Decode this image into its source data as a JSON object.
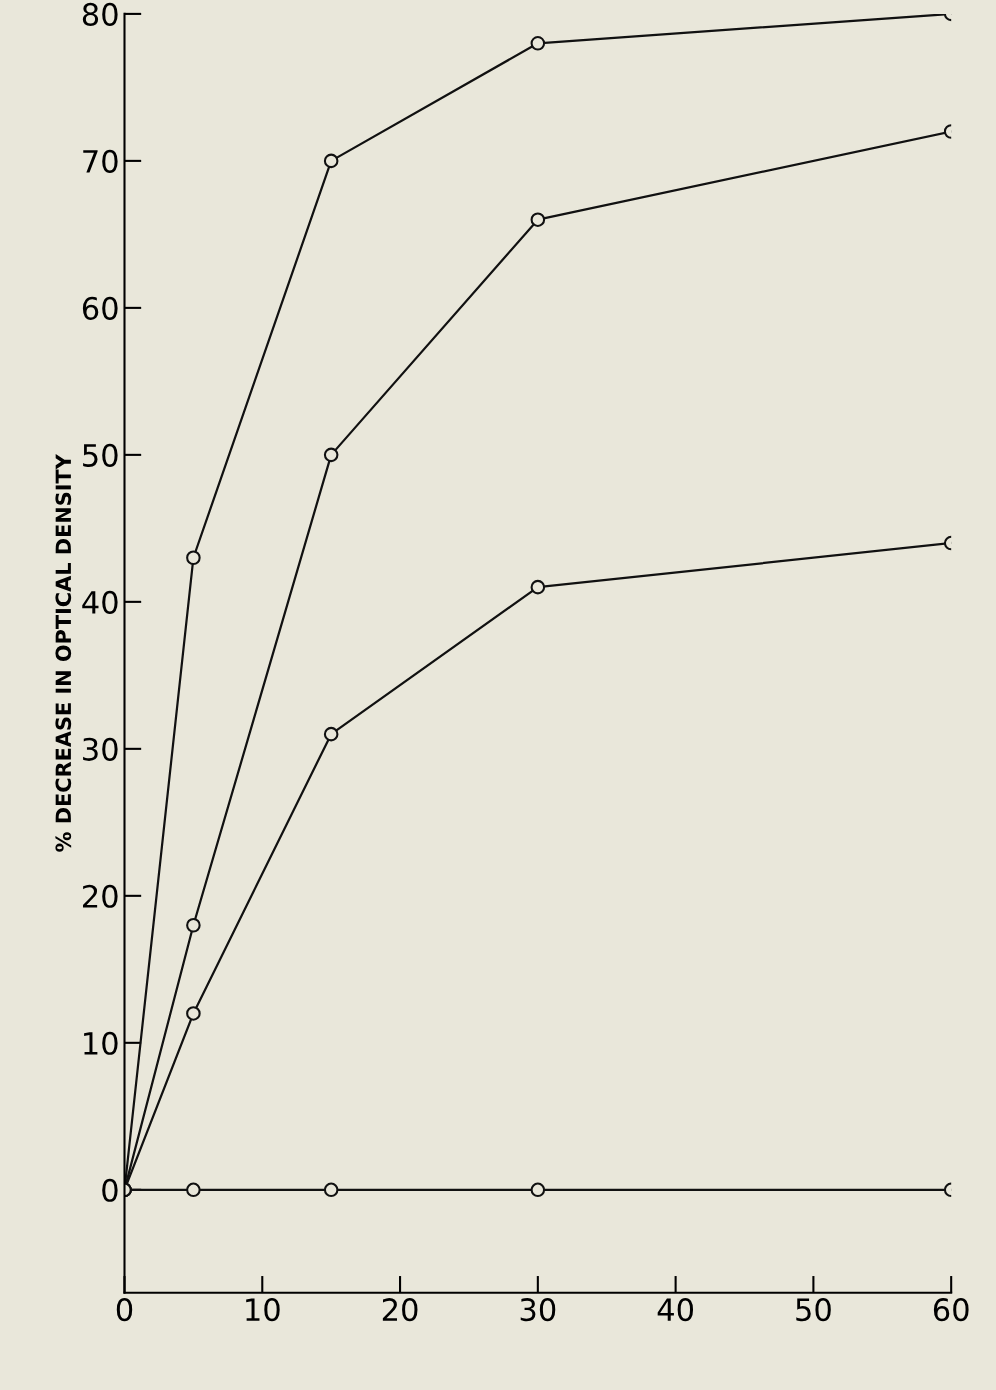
{
  "chart_data": {
    "type": "line",
    "ylabel": "% DECREASE IN OPTICAL DENSITY",
    "xlim": [
      0,
      60
    ],
    "xticks": [
      0,
      10,
      20,
      30,
      40,
      50,
      60
    ],
    "ylim": [
      -7,
      80
    ],
    "yticks": [
      0,
      10,
      20,
      30,
      40,
      50,
      60,
      70,
      80
    ],
    "grid": false,
    "legend": false,
    "marker": "circle",
    "line_style": "solid",
    "series": [
      {
        "color": "#111111",
        "x": [
          0,
          5,
          15,
          30,
          60
        ],
        "values": [
          0,
          43,
          70,
          78,
          80
        ]
      },
      {
        "color": "#111111",
        "x": [
          0,
          5,
          15,
          30,
          60
        ],
        "values": [
          0,
          18,
          50,
          66,
          72
        ]
      },
      {
        "color": "#111111",
        "x": [
          0,
          5,
          15,
          30,
          60
        ],
        "values": [
          0,
          12,
          31,
          41,
          44
        ]
      },
      {
        "color": "#111111",
        "x": [
          0,
          5,
          15,
          30,
          60
        ],
        "values": [
          0,
          0,
          0,
          0,
          0
        ]
      }
    ]
  }
}
